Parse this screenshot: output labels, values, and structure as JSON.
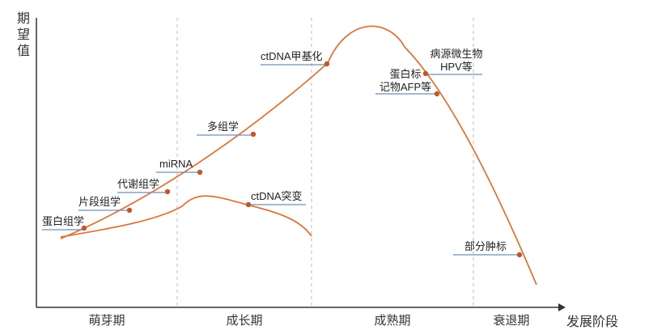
{
  "y_axis_title": "期望值",
  "x_axis_title": "发展阶段",
  "stages": [
    "萌芽期",
    "成长期",
    "成熟期",
    "衰退期"
  ],
  "upper_curve_markers": [
    "蛋白组学",
    "片段组学",
    "代谢组学",
    "miRNA",
    "多组学",
    "ctDNA甲基化",
    "病源微生物HPV等",
    "蛋白标记物AFP等",
    "部分肿标"
  ],
  "lower_curve_markers": [
    "ctDNA突变"
  ],
  "labels": {
    "m1": "蛋白组学",
    "m2": "片段组学",
    "m3": "代谢组学",
    "m4": "miRNA",
    "m5": "多组学",
    "m6": "ctDNA甲基化",
    "m7a": "病源微生物",
    "m7b": "HPV等",
    "m8a": "蛋白标",
    "m8b": "记物AFP等",
    "m9": "部分肿标",
    "m10": "ctDNA突变"
  },
  "colors": {
    "curve": "#d9773a",
    "dot": "#c0582a",
    "leader": "#6f8fb5",
    "axis": "#333333",
    "divider": "#bbbbbb"
  }
}
